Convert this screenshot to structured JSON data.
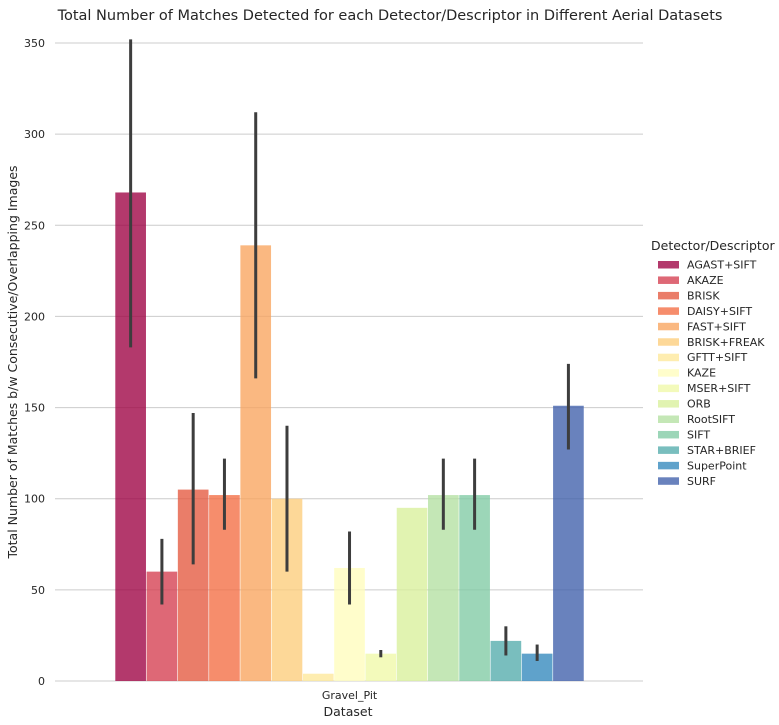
{
  "chart_data": {
    "type": "bar",
    "title": "Total Number of Matches Detected for each Detector/Descriptor in Different Aerial Datasets",
    "xlabel": "Dataset",
    "ylabel": "Total Number of Matches b/w Consecutive/Overlapping Images",
    "categories": [
      "Gravel_Pit"
    ],
    "ylim": [
      0,
      355
    ],
    "yticks": [
      0,
      50,
      100,
      150,
      200,
      250,
      300,
      350
    ],
    "grid": "horizontal",
    "legend": {
      "title": "Detector/Descriptor",
      "placement": "right"
    },
    "series": [
      {
        "name": "AGAST+SIFT",
        "color": "#9e0142",
        "values": [
          268
        ],
        "error": [
          [
            183,
            352
          ]
        ]
      },
      {
        "name": "AKAZE",
        "color": "#d53e4f",
        "values": [
          60
        ],
        "error": [
          [
            42,
            78
          ]
        ]
      },
      {
        "name": "BRISK",
        "color": "#e4593f",
        "values": [
          105
        ],
        "error": [
          [
            64,
            147
          ]
        ]
      },
      {
        "name": "DAISY+SIFT",
        "color": "#f46d43",
        "values": [
          102
        ],
        "error": [
          [
            83,
            122
          ]
        ]
      },
      {
        "name": "FAST+SIFT",
        "color": "#f8a45e",
        "values": [
          239
        ],
        "error": [
          [
            166,
            312
          ]
        ]
      },
      {
        "name": "BRISK+FREAK",
        "color": "#fdcd7b",
        "values": [
          100
        ],
        "error": [
          [
            60,
            140
          ]
        ]
      },
      {
        "name": "GFTT+SIFT",
        "color": "#fee89a",
        "values": [
          4
        ],
        "error": [
          [
            4,
            4
          ]
        ]
      },
      {
        "name": "KAZE",
        "color": "#fffdbd",
        "values": [
          62
        ],
        "error": [
          [
            42,
            82
          ]
        ]
      },
      {
        "name": "MSER+SIFT",
        "color": "#f0f9a8",
        "values": [
          15
        ],
        "error": [
          [
            13,
            17
          ]
        ]
      },
      {
        "name": "ORB",
        "color": "#d9ef9b",
        "values": [
          95
        ],
        "error": [
          [
            95,
            95
          ]
        ]
      },
      {
        "name": "RootSIFT",
        "color": "#b3e0a2",
        "values": [
          102
        ],
        "error": [
          [
            83,
            122
          ]
        ]
      },
      {
        "name": "SIFT",
        "color": "#80cba4",
        "values": [
          102
        ],
        "error": [
          [
            83,
            122
          ]
        ]
      },
      {
        "name": "STAR+BRIEF",
        "color": "#53acac",
        "values": [
          22
        ],
        "error": [
          [
            14,
            30
          ]
        ]
      },
      {
        "name": "SuperPoint",
        "color": "#3288bd",
        "values": [
          15
        ],
        "error": [
          [
            11,
            20
          ]
        ]
      },
      {
        "name": "SURF",
        "color": "#3f5fab",
        "values": [
          151
        ],
        "error": [
          [
            127,
            174
          ]
        ]
      }
    ]
  }
}
